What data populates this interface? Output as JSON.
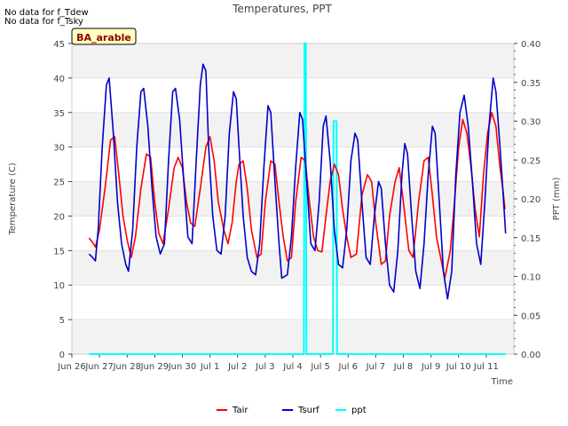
{
  "notes": [
    "No data for f_Tdew",
    "No data for f_Tsky"
  ],
  "badge": {
    "label": "BA_arable",
    "text_color": "#8b0000",
    "fill": "#ffffc0",
    "border": "#000000"
  },
  "chart_data": {
    "type": "line",
    "title": "Temperatures, PPT",
    "xlabel": "Time",
    "ylabel": "Temperature (C)",
    "y2label": "PPT (mm)",
    "xlim": [
      0,
      16
    ],
    "ylim": [
      0,
      45
    ],
    "y2lim": [
      0,
      0.4
    ],
    "grid": "horizontal bands",
    "legend_position": "bottom-center",
    "x_ticks": [
      {
        "day": 0,
        "label": "Jun 26"
      },
      {
        "day": 1,
        "label": "Jun 27"
      },
      {
        "day": 2,
        "label": "Jun 28"
      },
      {
        "day": 3,
        "label": "Jun 29"
      },
      {
        "day": 4,
        "label": "Jun 30"
      },
      {
        "day": 5,
        "label": "Jul 1"
      },
      {
        "day": 6,
        "label": "Jul 2"
      },
      {
        "day": 7,
        "label": "Jul 3"
      },
      {
        "day": 8,
        "label": "Jul 4"
      },
      {
        "day": 9,
        "label": "Jul 5"
      },
      {
        "day": 10,
        "label": "Jul 6"
      },
      {
        "day": 11,
        "label": "Jul 7"
      },
      {
        "day": 12,
        "label": "Jul 8"
      },
      {
        "day": 13,
        "label": "Jul 9"
      },
      {
        "day": 14,
        "label": "Jul 10"
      },
      {
        "day": 15,
        "label": "Jul 11"
      }
    ],
    "y_ticks": [
      0,
      5,
      10,
      15,
      20,
      25,
      30,
      35,
      40,
      45
    ],
    "y2_ticks": [
      "0.00",
      "0.05",
      "0.10",
      "0.15",
      "0.20",
      "0.25",
      "0.30",
      "0.35",
      "0.40"
    ],
    "series": [
      {
        "name": "Tair",
        "color": "#ff0000",
        "axis": "left",
        "points": [
          [
            0.62,
            16.8
          ],
          [
            0.75,
            16.2
          ],
          [
            0.85,
            15.5
          ],
          [
            1.0,
            18
          ],
          [
            1.2,
            24
          ],
          [
            1.4,
            31
          ],
          [
            1.55,
            31.5
          ],
          [
            1.7,
            26
          ],
          [
            1.85,
            20
          ],
          [
            2.0,
            16.5
          ],
          [
            2.15,
            14
          ],
          [
            2.3,
            17
          ],
          [
            2.5,
            24
          ],
          [
            2.7,
            29
          ],
          [
            2.85,
            28.5
          ],
          [
            3.0,
            22
          ],
          [
            3.15,
            17.5
          ],
          [
            3.3,
            16
          ],
          [
            3.5,
            21
          ],
          [
            3.7,
            27
          ],
          [
            3.85,
            28.5
          ],
          [
            4.0,
            27
          ],
          [
            4.15,
            22
          ],
          [
            4.3,
            19
          ],
          [
            4.45,
            18.5
          ],
          [
            4.65,
            24
          ],
          [
            4.85,
            30
          ],
          [
            5.0,
            31.5
          ],
          [
            5.15,
            28
          ],
          [
            5.3,
            22
          ],
          [
            5.5,
            18
          ],
          [
            5.65,
            16
          ],
          [
            5.8,
            19
          ],
          [
            5.95,
            25
          ],
          [
            6.05,
            27.5
          ],
          [
            6.2,
            28
          ],
          [
            6.35,
            24
          ],
          [
            6.5,
            18
          ],
          [
            6.7,
            14
          ],
          [
            6.85,
            14.5
          ],
          [
            7.0,
            22
          ],
          [
            7.2,
            28
          ],
          [
            7.35,
            27.5
          ],
          [
            7.5,
            22
          ],
          [
            7.65,
            17
          ],
          [
            7.8,
            13.5
          ],
          [
            7.95,
            14
          ],
          [
            8.1,
            22
          ],
          [
            8.3,
            28.5
          ],
          [
            8.45,
            28
          ],
          [
            8.6,
            22
          ],
          [
            8.75,
            17
          ],
          [
            8.9,
            15
          ],
          [
            9.05,
            14.8
          ],
          [
            9.2,
            20
          ],
          [
            9.35,
            25
          ],
          [
            9.5,
            27.5
          ],
          [
            9.65,
            26
          ],
          [
            9.8,
            21
          ],
          [
            9.95,
            17
          ],
          [
            10.1,
            14
          ],
          [
            10.3,
            14.5
          ],
          [
            10.5,
            23
          ],
          [
            10.7,
            26
          ],
          [
            10.85,
            25
          ],
          [
            11.0,
            19
          ],
          [
            11.2,
            13
          ],
          [
            11.35,
            13.5
          ],
          [
            11.5,
            20
          ],
          [
            11.7,
            25
          ],
          [
            11.85,
            27
          ],
          [
            12.0,
            22
          ],
          [
            12.2,
            15
          ],
          [
            12.35,
            14
          ],
          [
            12.55,
            22
          ],
          [
            12.75,
            28
          ],
          [
            12.9,
            28.5
          ],
          [
            13.05,
            23
          ],
          [
            13.2,
            17
          ],
          [
            13.35,
            14
          ],
          [
            13.5,
            11
          ],
          [
            13.7,
            15
          ],
          [
            13.85,
            22
          ],
          [
            14.0,
            30
          ],
          [
            14.15,
            34
          ],
          [
            14.3,
            32
          ],
          [
            14.45,
            27
          ],
          [
            14.6,
            21
          ],
          [
            14.75,
            17
          ],
          [
            14.9,
            26
          ],
          [
            15.05,
            32
          ],
          [
            15.2,
            35
          ],
          [
            15.35,
            33
          ],
          [
            15.5,
            27
          ],
          [
            15.6,
            24
          ],
          [
            15.68,
            21
          ]
        ]
      },
      {
        "name": "Tsurf",
        "color": "#0000cc",
        "axis": "left",
        "points": [
          [
            0.62,
            14.5
          ],
          [
            0.75,
            14
          ],
          [
            0.85,
            13.5
          ],
          [
            0.95,
            18
          ],
          [
            1.1,
            30
          ],
          [
            1.25,
            39
          ],
          [
            1.35,
            40
          ],
          [
            1.5,
            32
          ],
          [
            1.65,
            22
          ],
          [
            1.8,
            16
          ],
          [
            1.95,
            13
          ],
          [
            2.05,
            12
          ],
          [
            2.2,
            18
          ],
          [
            2.35,
            30
          ],
          [
            2.5,
            38
          ],
          [
            2.6,
            38.5
          ],
          [
            2.75,
            33
          ],
          [
            2.9,
            24
          ],
          [
            3.05,
            17
          ],
          [
            3.2,
            14.5
          ],
          [
            3.35,
            16
          ],
          [
            3.5,
            28
          ],
          [
            3.65,
            38
          ],
          [
            3.75,
            38.5
          ],
          [
            3.9,
            34
          ],
          [
            4.05,
            25
          ],
          [
            4.2,
            17
          ],
          [
            4.35,
            16
          ],
          [
            4.5,
            28
          ],
          [
            4.65,
            39
          ],
          [
            4.75,
            42
          ],
          [
            4.85,
            41
          ],
          [
            4.95,
            30
          ],
          [
            5.1,
            20
          ],
          [
            5.25,
            15
          ],
          [
            5.4,
            14.5
          ],
          [
            5.55,
            20
          ],
          [
            5.7,
            32
          ],
          [
            5.85,
            38
          ],
          [
            5.95,
            37
          ],
          [
            6.05,
            30
          ],
          [
            6.2,
            20
          ],
          [
            6.35,
            14
          ],
          [
            6.5,
            12
          ],
          [
            6.65,
            11.5
          ],
          [
            6.8,
            16
          ],
          [
            6.95,
            27
          ],
          [
            7.1,
            36
          ],
          [
            7.2,
            35
          ],
          [
            7.35,
            25
          ],
          [
            7.5,
            16
          ],
          [
            7.6,
            11
          ],
          [
            7.8,
            11.5
          ],
          [
            7.95,
            17
          ],
          [
            8.1,
            27
          ],
          [
            8.25,
            35
          ],
          [
            8.35,
            34
          ],
          [
            8.5,
            25
          ],
          [
            8.65,
            16
          ],
          [
            8.8,
            15
          ],
          [
            8.95,
            22
          ],
          [
            9.1,
            33
          ],
          [
            9.2,
            34.5
          ],
          [
            9.35,
            28
          ],
          [
            9.5,
            18
          ],
          [
            9.65,
            13
          ],
          [
            9.8,
            12.5
          ],
          [
            9.95,
            18
          ],
          [
            10.1,
            28
          ],
          [
            10.25,
            32
          ],
          [
            10.35,
            31
          ],
          [
            10.5,
            22
          ],
          [
            10.65,
            14
          ],
          [
            10.8,
            13
          ],
          [
            10.95,
            20
          ],
          [
            11.1,
            25
          ],
          [
            11.2,
            24
          ],
          [
            11.35,
            16
          ],
          [
            11.5,
            10
          ],
          [
            11.65,
            9
          ],
          [
            11.8,
            15
          ],
          [
            11.95,
            26
          ],
          [
            12.05,
            30.5
          ],
          [
            12.15,
            29
          ],
          [
            12.3,
            20
          ],
          [
            12.45,
            12
          ],
          [
            12.6,
            9.5
          ],
          [
            12.75,
            16
          ],
          [
            12.9,
            26
          ],
          [
            13.05,
            33
          ],
          [
            13.15,
            32
          ],
          [
            13.3,
            22
          ],
          [
            13.45,
            12
          ],
          [
            13.6,
            8
          ],
          [
            13.75,
            12
          ],
          [
            13.9,
            26
          ],
          [
            14.05,
            35
          ],
          [
            14.2,
            37.5
          ],
          [
            14.35,
            33
          ],
          [
            14.5,
            25
          ],
          [
            14.65,
            16
          ],
          [
            14.8,
            13
          ],
          [
            14.95,
            22
          ],
          [
            15.1,
            33
          ],
          [
            15.25,
            40
          ],
          [
            15.35,
            38
          ],
          [
            15.5,
            30
          ],
          [
            15.6,
            24
          ],
          [
            15.7,
            17.5
          ]
        ]
      },
      {
        "name": "ppt",
        "color": "#00ffff",
        "axis": "right",
        "points": [
          [
            0.62,
            0
          ],
          [
            8.4,
            0
          ],
          [
            8.42,
            0.4
          ],
          [
            8.47,
            0.4
          ],
          [
            8.49,
            0
          ],
          [
            9.45,
            0
          ],
          [
            9.47,
            0.3
          ],
          [
            9.58,
            0.3
          ],
          [
            9.6,
            0
          ],
          [
            15.7,
            0
          ]
        ]
      }
    ]
  }
}
